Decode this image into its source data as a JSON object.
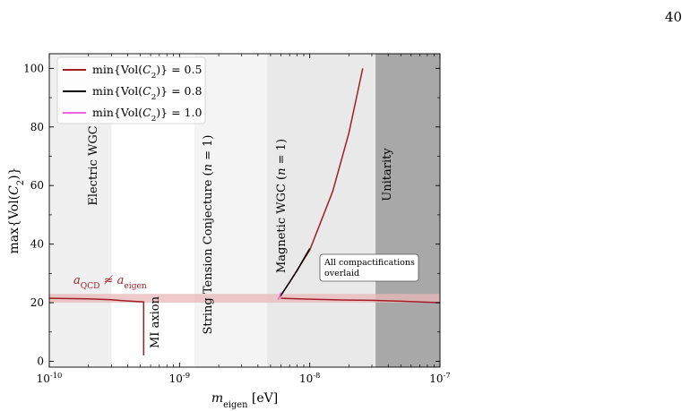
{
  "page_number": "40",
  "chart_data": {
    "type": "line",
    "xscale": "log",
    "xlim": [
      1e-10,
      1e-07
    ],
    "ylim": [
      -2,
      105
    ],
    "xlabel": "m_eigen [eV]",
    "ylabel": "max{Vol(C_2)}",
    "x_ticks": [
      {
        "value": 1e-10,
        "label": "10^-10"
      },
      {
        "value": 1e-09,
        "label": "10^-9"
      },
      {
        "value": 1e-08,
        "label": "10^-8"
      },
      {
        "value": 1e-07,
        "label": "10^-7"
      }
    ],
    "y_ticks": [
      0,
      20,
      40,
      60,
      80,
      100
    ],
    "grid": false,
    "legend": {
      "position": "top-left",
      "entries": [
        {
          "label": "min{Vol(C_2)} = 0.5",
          "color": "#a01e28"
        },
        {
          "label": "min{Vol(C_2)} = 0.8",
          "color": "#000000"
        },
        {
          "label": "min{Vol(C_2)} = 1.0",
          "color": "#ee66dd"
        }
      ]
    },
    "regions": [
      {
        "label": "Electric WGC",
        "x": [
          1e-10,
          3e-10
        ],
        "shade": "#f0f0f0"
      },
      {
        "label": "String Tension Conjecture (n = 1)",
        "x": [
          1.3e-09,
          4.7e-09
        ],
        "shade": "#f4f4f4"
      },
      {
        "label": "Magnetic WGC (n = 1)",
        "x": [
          4.7e-09,
          3.2e-08
        ],
        "shade": "#e9e9e9"
      },
      {
        "label": "Unitarity",
        "x": [
          3.2e-08,
          1e-07
        ],
        "shade": "#a8a8a8"
      }
    ],
    "band": {
      "label": "a_QCD ≉ a_eigen",
      "y": [
        20,
        23
      ],
      "color": "#e8b8b8"
    },
    "annotation": "All compactifications overlaid",
    "series": [
      {
        "name": "min{Vol(C_2)} = 0.5",
        "color": "#a01e28",
        "x": [
          1e-10,
          2e-10,
          3e-10,
          4e-10,
          5.2e-10,
          5.3e-10,
          5.3e-10
        ],
        "y": [
          21.5,
          21.3,
          21.0,
          20.6,
          20.3,
          20.3,
          2
        ]
      },
      {
        "name": "min{Vol(C_2)} = 0.5",
        "color": "#a01e28",
        "x": [
          5.9e-09,
          7e-09,
          1e-08,
          1.5e-08,
          2e-08,
          2.55e-08
        ],
        "y": [
          22,
          27,
          38,
          58,
          78,
          100
        ]
      },
      {
        "name": "min{Vol(C_2)} = 0.5",
        "color": "#a01e28",
        "x": [
          6e-09,
          1e-08,
          1.5e-08,
          2e-08,
          3e-08,
          5e-08,
          1e-07
        ],
        "y": [
          21.5,
          21.2,
          21.0,
          20.9,
          20.8,
          20.5,
          20.0
        ]
      },
      {
        "name": "min{Vol(C_2)} = 0.8",
        "color": "#000000",
        "x": [
          6e-09,
          7e-09,
          8e-09,
          9e-09,
          1e-08
        ],
        "y": [
          22.5,
          27,
          31,
          35,
          38.5
        ]
      },
      {
        "name": "min{Vol(C_2)} = 1.0",
        "color": "#ee66dd",
        "x": [
          5.7e-09,
          5.85e-09,
          6e-09
        ],
        "y": [
          21.0,
          22.0,
          23.5
        ]
      }
    ]
  }
}
